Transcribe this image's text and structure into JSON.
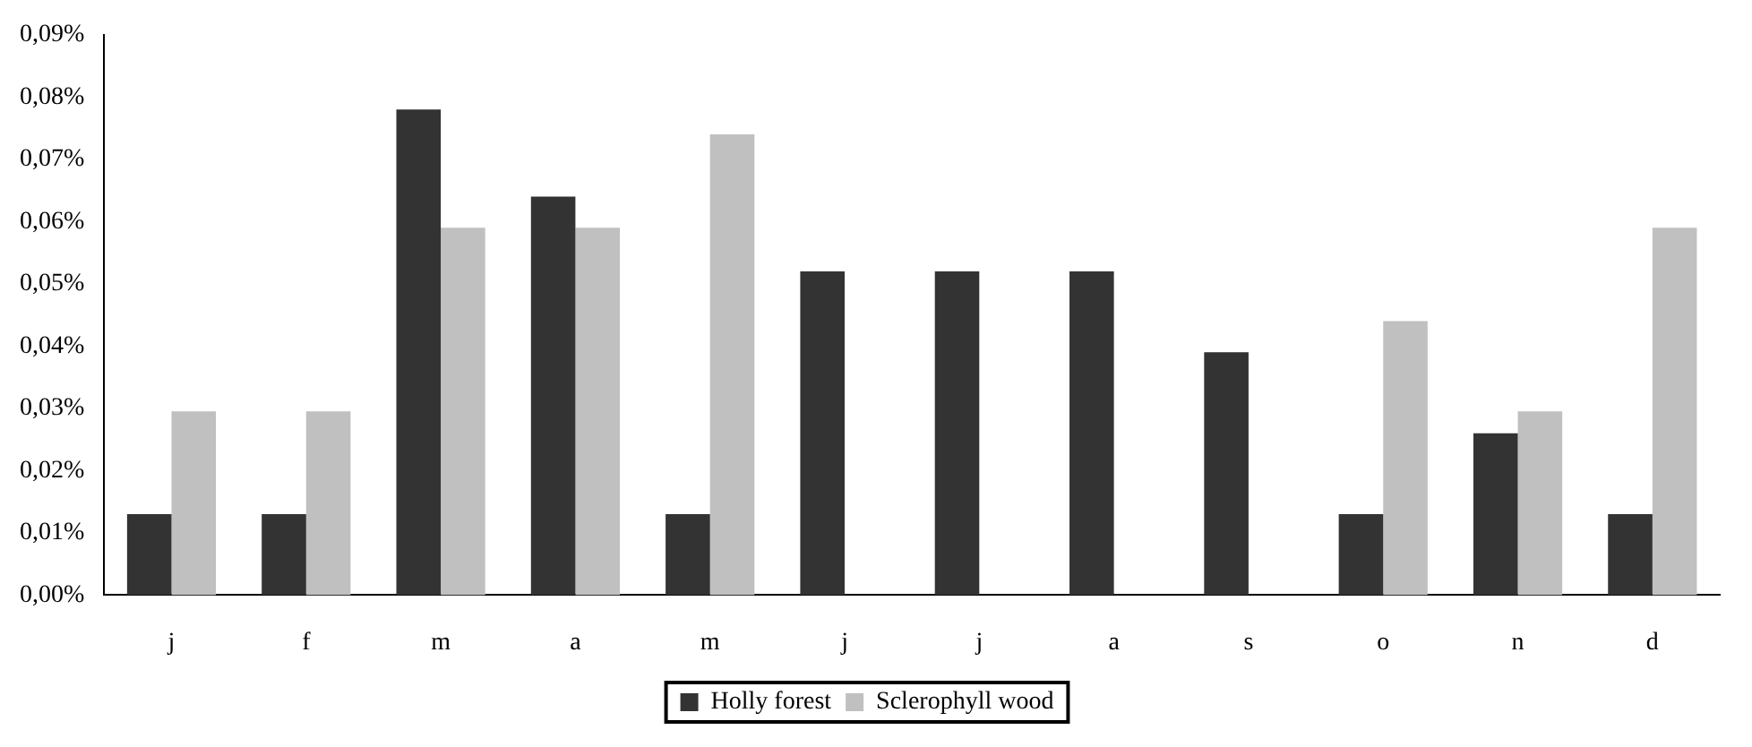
{
  "chart_data": {
    "type": "bar",
    "categories": [
      "j",
      "f",
      "m",
      "a",
      "m",
      "j",
      "j",
      "a",
      "s",
      "o",
      "n",
      "d"
    ],
    "series": [
      {
        "name": "Holly forest",
        "color": "#333333",
        "values": [
          0.013,
          0.013,
          0.078,
          0.064,
          0.013,
          0.052,
          0.052,
          0.052,
          0.039,
          0.013,
          0.026,
          0.013
        ]
      },
      {
        "name": "Sclerophyll wood",
        "color": "#c0c0c0",
        "values": [
          0.0295,
          0.0295,
          0.059,
          0.059,
          0.074,
          0,
          0,
          0,
          0,
          0.044,
          0.0295,
          0.059
        ]
      }
    ],
    "ylim": [
      0,
      0.09
    ],
    "yticks": [
      {
        "value": 0,
        "label": "0,00%"
      },
      {
        "value": 0.01,
        "label": "0,01%"
      },
      {
        "value": 0.02,
        "label": "0,02%"
      },
      {
        "value": 0.03,
        "label": "0,03%"
      },
      {
        "value": 0.04,
        "label": "0,04%"
      },
      {
        "value": 0.05,
        "label": "0,05%"
      },
      {
        "value": 0.06,
        "label": "0,06%"
      },
      {
        "value": 0.07,
        "label": "0,07%"
      },
      {
        "value": 0.08,
        "label": "0,08%"
      },
      {
        "value": 0.09,
        "label": "0,09%"
      }
    ],
    "grid": false,
    "legend": "bottom"
  }
}
